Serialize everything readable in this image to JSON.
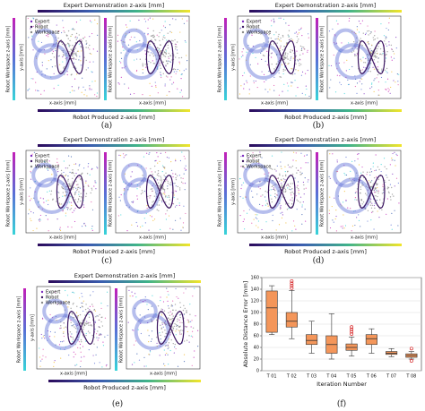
{
  "labels": {
    "top_colorbar": "Expert Demonstration z-axis [mm]",
    "side_colorbar": "Robot Workspace z-axis [mm]",
    "bottom_colorbar": "Robot Produced z-axis [mm]",
    "x_label": "x-axis [mm]",
    "y_label": "y-axis [mm]",
    "legend": [
      "Expert",
      "Robot",
      "Workspace"
    ]
  },
  "panel_captions": [
    "(a)",
    "(b)",
    "(c)",
    "(d)",
    "(e)"
  ],
  "chart_data": {
    "type": "box",
    "caption": "(f)",
    "x_label": "Iteration Number",
    "y_label": "Absolute Distance Error [mm]",
    "categories": [
      "T 01",
      "T 02",
      "T 03",
      "T 04",
      "T 05",
      "T 06",
      "T 07",
      "T 08"
    ],
    "color": "#f4965a",
    "outlier_color": "#d62728",
    "grid": true,
    "boxes": [
      {
        "min": 62,
        "q1": 66,
        "median": 108,
        "q3": 137,
        "max": 146,
        "outliers": []
      },
      {
        "min": 55,
        "q1": 75,
        "median": 85,
        "q3": 100,
        "max": 138,
        "outliers": [
          142,
          146,
          150,
          154
        ]
      },
      {
        "min": 30,
        "q1": 45,
        "median": 52,
        "q3": 62,
        "max": 85,
        "outliers": []
      },
      {
        "min": 20,
        "q1": 30,
        "median": 45,
        "q3": 60,
        "max": 98,
        "outliers": []
      },
      {
        "min": 25,
        "q1": 35,
        "median": 40,
        "q3": 46,
        "max": 58,
        "outliers": [
          63,
          67,
          71,
          75
        ]
      },
      {
        "min": 30,
        "q1": 45,
        "median": 55,
        "q3": 62,
        "max": 72,
        "outliers": []
      },
      {
        "min": 24,
        "q1": 28,
        "median": 30,
        "q3": 33,
        "max": 38,
        "outliers": []
      },
      {
        "min": 20,
        "q1": 23,
        "median": 26,
        "q3": 29,
        "max": 33,
        "outliers": [
          38,
          17
        ]
      }
    ],
    "ylim": [
      0,
      160
    ],
    "yticks": [
      0,
      20,
      40,
      60,
      80,
      100,
      120,
      140,
      160
    ]
  }
}
